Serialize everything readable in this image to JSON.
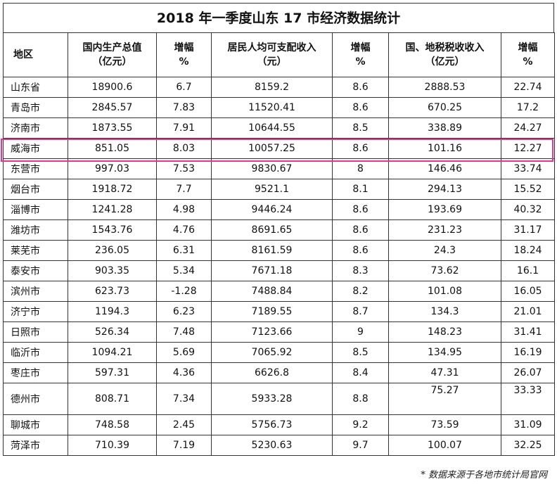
{
  "title": "2018 年一季度山东 17 市经济数据统计",
  "headers": {
    "region": "地区",
    "gdp": [
      "国内生产总值",
      "（亿元）"
    ],
    "gdp_growth": [
      "增幅",
      "%"
    ],
    "income": [
      "居民人均可支配收入",
      "（元）"
    ],
    "income_growth": [
      "增幅",
      "%"
    ],
    "tax": [
      "国、地税税收收入",
      "（亿元）"
    ],
    "tax_growth": [
      "增幅",
      "%"
    ]
  },
  "rows": [
    [
      "山东省",
      "18900.6",
      "6.7",
      "8159.2",
      "8.6",
      "2888.53",
      "22.74"
    ],
    [
      "青岛市",
      "2845.57",
      "7.83",
      "11520.41",
      "8.6",
      "670.25",
      "17.2"
    ],
    [
      "济南市",
      "1873.55",
      "7.91",
      "10644.55",
      "8.5",
      "338.89",
      "24.27"
    ],
    [
      "威海市",
      "851.05",
      "8.03",
      "10057.25",
      "8.6",
      "101.16",
      "12.27"
    ],
    [
      "东营市",
      "997.03",
      "7.53",
      "9830.67",
      "8",
      "146.46",
      "33.74"
    ],
    [
      "烟台市",
      "1918.72",
      "7.7",
      "9521.1",
      "8.1",
      "294.13",
      "15.52"
    ],
    [
      "淄博市",
      "1241.28",
      "4.98",
      "9446.24",
      "8.6",
      "193.69",
      "40.32"
    ],
    [
      "潍坊市",
      "1543.76",
      "4.76",
      "8691.65",
      "8.6",
      "231.23",
      "31.17"
    ],
    [
      "莱芜市",
      "236.05",
      "6.31",
      "8161.59",
      "8.6",
      "24.3",
      "18.24"
    ],
    [
      "泰安市",
      "903.35",
      "5.34",
      "7671.18",
      "8.3",
      "73.62",
      "16.1"
    ],
    [
      "滨州市",
      "623.73",
      "-1.28",
      "7488.84",
      "8.2",
      "101.08",
      "16.05"
    ],
    [
      "济宁市",
      "1194.3",
      "6.23",
      "7189.55",
      "8.7",
      "134.3",
      "21.01"
    ],
    [
      "日照市",
      "526.34",
      "7.48",
      "7123.66",
      "9",
      "148.23",
      "31.41"
    ],
    [
      "临沂市",
      "1094.21",
      "5.69",
      "7065.92",
      "8.5",
      "134.95",
      "16.19"
    ],
    [
      "枣庄市",
      "597.31",
      "4.36",
      "6626.8",
      "8.4",
      "47.31",
      "26.07"
    ],
    [
      "德州市",
      "808.71",
      "7.34",
      "5933.28",
      "8.8",
      "75.27",
      "33.33"
    ],
    [
      "聊城市",
      "748.58",
      "2.45",
      "5756.73",
      "9.2",
      "73.59",
      "31.09"
    ],
    [
      "菏泽市",
      "710.39",
      "7.19",
      "5230.63",
      "9.7",
      "100.07",
      "32.25"
    ]
  ],
  "highlight_color": "#e8368f",
  "footnote": "* 数据来源于各地市统计局官网"
}
